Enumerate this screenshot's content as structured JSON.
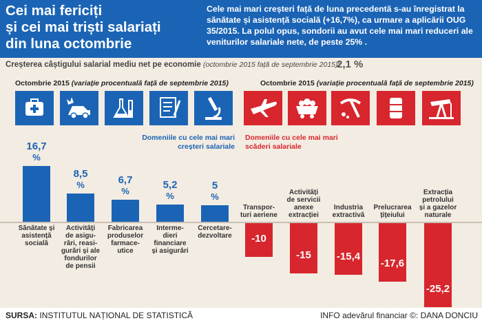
{
  "header": {
    "title_lines": [
      "Cei mai fericiți",
      "și cei mai triști salariați",
      "din luna octombrie"
    ],
    "intro": "Cele mai mari creșteri față de luna precedentă s-au înregistrat la sănătate și asistență socială (+16,7%), ca urmare a aplicării OUG 35/2015. La polul opus, sondorii au avut cele mai mari reduceri ale veniturilor salariale nete, de peste 25% ."
  },
  "growth": {
    "label": "Creșterea câștigului salarial mediu net pe economie",
    "period": "(octombrie 2015 față de septembrie 2015)",
    "colon": ":",
    "value": "2,1 %"
  },
  "sections": {
    "left_title": "Octombrie 2015",
    "left_sub": "(variație procentuală față de septembrie 2015)",
    "right_title": "Octombrie 2015",
    "right_sub": "(variație procentuală față de septembrie 2015)"
  },
  "legend": {
    "up_lines": [
      "Domeniile cu cele mai mari",
      "creșteri salariale"
    ],
    "down_lines": [
      "Domeniile cu cele mai mari",
      "scăderi salariale"
    ]
  },
  "chart_data": {
    "type": "bar",
    "unit": "%",
    "ylim": [
      -26,
      17
    ],
    "series": [
      {
        "name": "Domeniile cu cele mai mari creșteri salariale",
        "color": "#1b64b5",
        "categories": [
          "Sănătate și asistență socială",
          "Activități de asigurări, reasigurări și ale fondurilor de pensii",
          "Fabricarea produselor farmaceutice",
          "Intermedieri financiare și asigurări",
          "Cercetare-dezvoltare"
        ],
        "values": [
          16.7,
          8.5,
          6.7,
          5.2,
          5
        ],
        "labels": [
          "16,7",
          "8,5",
          "6,7",
          "5,2",
          "5"
        ],
        "icons": [
          "first-aid-kit-icon",
          "car-crash-icon",
          "flask-icon",
          "document-pen-icon",
          "microscope-icon"
        ],
        "category_lines": [
          [
            "Sănătate și",
            "asistență",
            "socială"
          ],
          [
            "Activități",
            "de asigu-",
            "rări, reasi-",
            "gurări și ale",
            "fondurilor",
            "de pensii"
          ],
          [
            "Fabricarea",
            "produselor",
            "farmace-",
            "utice"
          ],
          [
            "Interme-",
            "dieri",
            "financiare",
            "și asigurări"
          ],
          [
            "Cercetare-",
            "dezvoltare"
          ]
        ]
      },
      {
        "name": "Domeniile cu cele mai mari scăderi salariale",
        "color": "#d7262d",
        "categories": [
          "Transporturi aeriene",
          "Activități de servicii anexe extracției",
          "Industria extractivă",
          "Prelucrarea țițeiului",
          "Extracția petrolului și a gazelor naturale"
        ],
        "values": [
          -10,
          -15,
          -15.4,
          -17.6,
          -25.2
        ],
        "labels": [
          "-10",
          "-15",
          "-15,4",
          "-17,6",
          "-25,2"
        ],
        "icons": [
          "airplane-icon",
          "mine-cart-icon",
          "pickaxe-icon",
          "oil-barrel-icon",
          "oil-pump-icon"
        ],
        "category_lines": [
          [
            "Transpor-",
            "turi aeriene"
          ],
          [
            "Activități",
            "de servicii",
            "anexe",
            "extracției"
          ],
          [
            "Industria",
            "extractivă"
          ],
          [
            "Prelucrarea",
            "țițeiului"
          ],
          [
            "Extracția",
            "petrolului",
            "și a gazelor",
            "naturale"
          ]
        ]
      }
    ]
  },
  "footer": {
    "source_label": "SURSA:",
    "source": "INSTITUTUL NAȚIONAL DE STATISTICĂ",
    "info": "INFO adevărul financiar ©:  DANA DONCIU"
  }
}
